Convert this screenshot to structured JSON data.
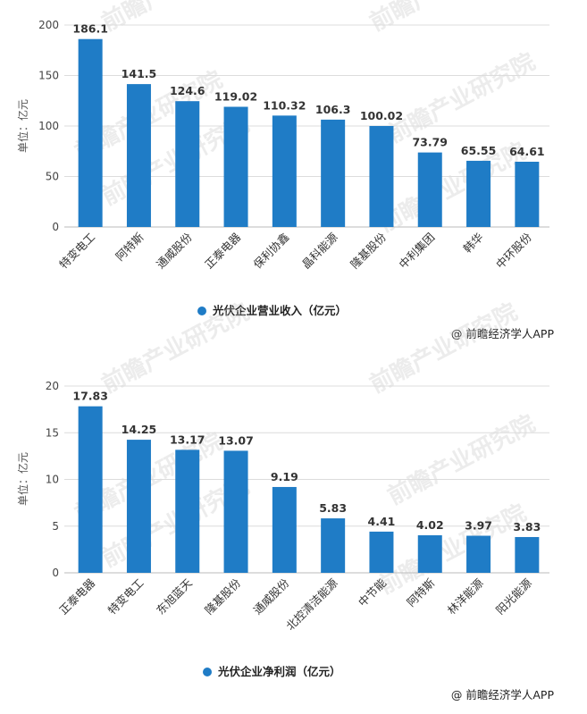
{
  "colors": {
    "bar": "#1f7cc6",
    "grid": "#dcdcdc"
  },
  "watermark_text": "前瞻产业研究院",
  "chart_data": [
    {
      "type": "bar",
      "title": "",
      "ylabel": "单位：亿元",
      "xlabel": "",
      "ylim": [
        0,
        200
      ],
      "yticks": [
        0,
        50,
        100,
        150,
        200
      ],
      "grid": true,
      "categories": [
        "特变电工",
        "阿特斯",
        "通威股份",
        "正泰电器",
        "保利协鑫",
        "晶科能源",
        "隆基股份",
        "中利集团",
        "韩华",
        "中环股份"
      ],
      "series": [
        {
          "name": "光伏企业营业收入（亿元）",
          "values": [
            186.1,
            141.5,
            124.6,
            119.02,
            110.32,
            106.3,
            100.02,
            73.79,
            65.55,
            64.61
          ]
        }
      ],
      "value_labels": [
        "186.1",
        "141.5",
        "124.6",
        "119.02",
        "110.32",
        "106.3",
        "100.02",
        "73.79",
        "65.55",
        "64.61"
      ],
      "legend_position": "bottom",
      "source": "@ 前瞻经济学人APP"
    },
    {
      "type": "bar",
      "title": "",
      "ylabel": "单位：亿元",
      "xlabel": "",
      "ylim": [
        0,
        20
      ],
      "yticks": [
        0,
        5,
        10,
        15,
        20
      ],
      "grid": true,
      "categories": [
        "正泰电器",
        "特变电工",
        "东旭蓝天",
        "隆基股份",
        "通威股份",
        "北控清洁能源",
        "中节能",
        "阿特斯",
        "林洋能源",
        "阳光能源"
      ],
      "series": [
        {
          "name": "光伏企业净利润（亿元）",
          "values": [
            17.83,
            14.25,
            13.17,
            13.07,
            9.19,
            5.83,
            4.41,
            4.02,
            3.97,
            3.83
          ]
        }
      ],
      "value_labels": [
        "17.83",
        "14.25",
        "13.17",
        "13.07",
        "9.19",
        "5.83",
        "4.41",
        "4.02",
        "3.97",
        "3.83"
      ],
      "legend_position": "bottom",
      "source": "@ 前瞻经济学人APP"
    }
  ]
}
